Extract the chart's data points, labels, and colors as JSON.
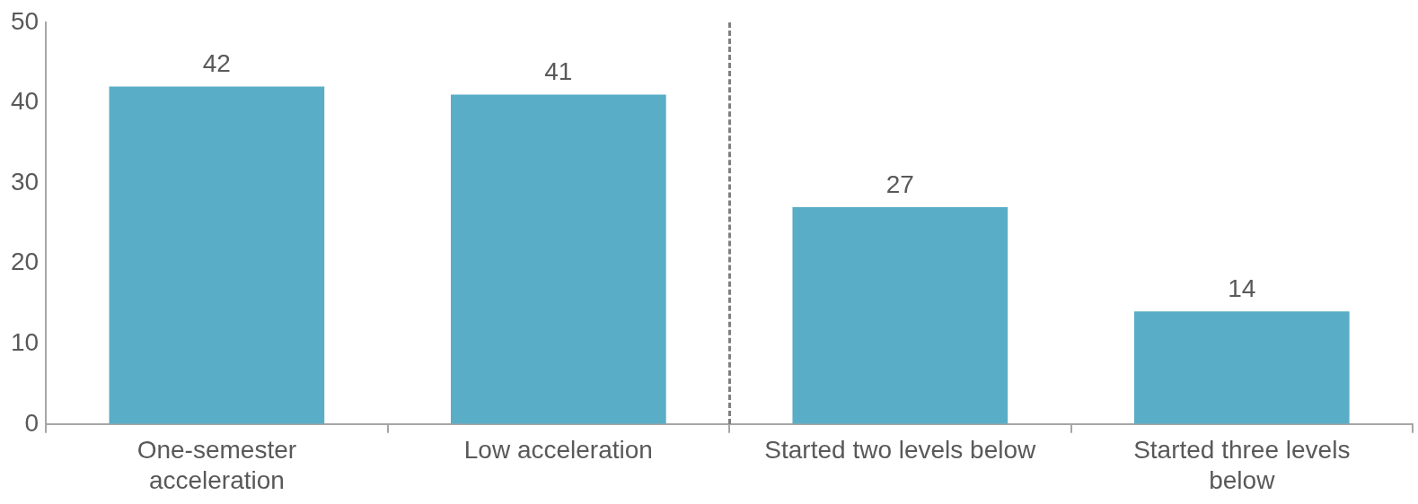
{
  "chart_data": {
    "type": "bar",
    "categories": [
      "One-semester acceleration",
      "Low acceleration",
      "Started two levels below",
      "Started three levels below"
    ],
    "values": [
      42,
      41,
      27,
      14
    ],
    "color": "#5aadc6",
    "ylim": [
      0,
      50
    ],
    "yticks": [
      0,
      10,
      20,
      30,
      40,
      50
    ],
    "grid": false,
    "data_labels": true
  }
}
